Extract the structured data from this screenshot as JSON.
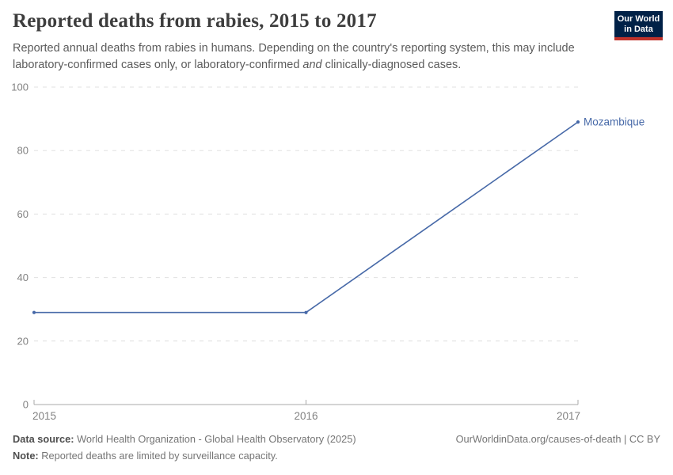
{
  "header": {
    "title": "Reported deaths from rabies, 2015 to 2017",
    "subtitle_part1": "Reported annual deaths from rabies in humans. Depending on the country's reporting system, this may include laboratory-confirmed cases only, or laboratory-confirmed ",
    "subtitle_italic": "and",
    "subtitle_part2": " clinically-diagnosed cases."
  },
  "logo": {
    "line1": "Our World",
    "line2": "in Data",
    "bg_color": "#002147",
    "bar_color": "#c0332b"
  },
  "chart_data": {
    "type": "line",
    "title": "Reported deaths from rabies, 2015 to 2017",
    "x": [
      2015,
      2016,
      2017
    ],
    "series": [
      {
        "name": "Mozambique",
        "values": [
          29,
          29,
          89
        ],
        "color": "#4769a8"
      }
    ],
    "xlim": [
      2015,
      2017
    ],
    "ylim": [
      0,
      100
    ],
    "x_ticks": [
      2015,
      2016,
      2017
    ],
    "y_ticks": [
      0,
      20,
      40,
      60,
      80,
      100
    ],
    "grid": "horizontal dashed",
    "legend_position": "end-of-line label",
    "xlabel": "",
    "ylabel": ""
  },
  "chart_style": {
    "grid_color": "#e0e0e0",
    "axis_color": "#a8a8a8",
    "tick_label_color": "#828282",
    "entity_label_color": "#4769a8"
  },
  "footer": {
    "datasource_label": "Data source:",
    "datasource_text": " World Health Organization - Global Health Observatory (2025)",
    "note_label": "Note:",
    "note_text": " Reported deaths are limited by surveillance capacity.",
    "link": "OurWorldinData.org/causes-of-death | CC BY"
  }
}
